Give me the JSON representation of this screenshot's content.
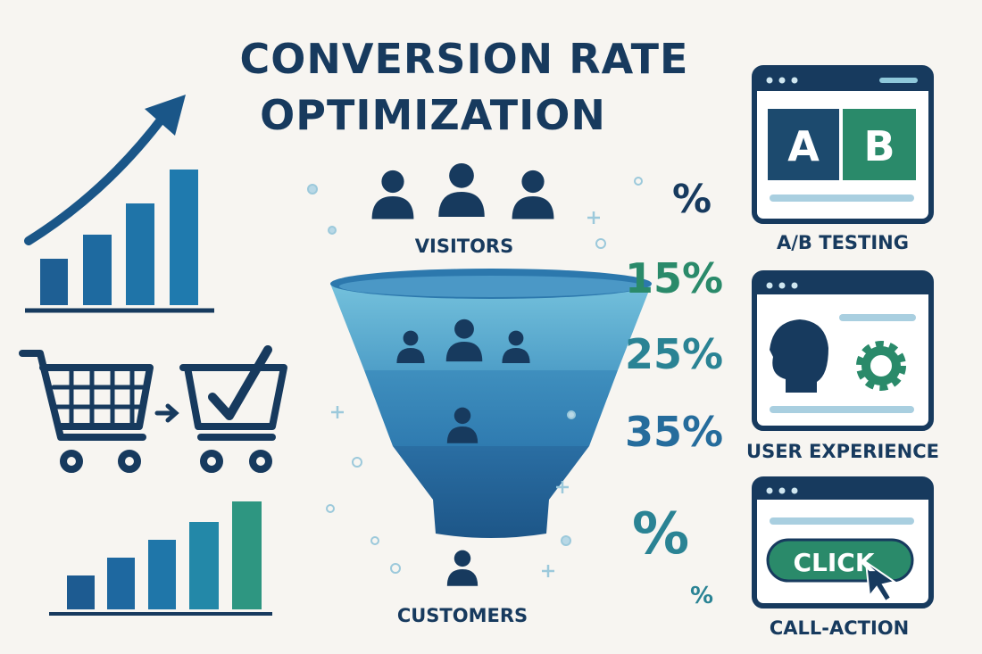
{
  "header": {
    "title_lines": [
      "CONVERSION RATE",
      "OPTIMIZATION"
    ]
  },
  "funnel": {
    "top_label": "VISITORS",
    "bottom_label": "CUSTOMERS"
  },
  "percentages": [
    "%",
    "15%",
    "25%",
    "35%",
    "%",
    "%"
  ],
  "panels": [
    {
      "letters": [
        "A",
        "B"
      ],
      "label": "A/B TESTING"
    },
    {
      "label": "USER EXPERIENCE"
    },
    {
      "button": "CLICK",
      "label": "CALL-ACTION"
    }
  ]
}
